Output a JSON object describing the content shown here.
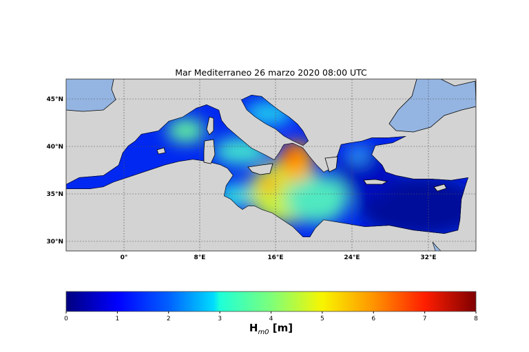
{
  "title": "Mar Mediterraneo 26 marzo 2020  08:00 UTC",
  "map": {
    "variable": "significant wave height",
    "lat_ticks": [
      "45°N",
      "40°N",
      "35°N",
      "30°N"
    ],
    "lon_ticks": [
      "0°",
      "8°E",
      "16°E",
      "24°E",
      "32°E"
    ],
    "colors": {
      "land": "#d3d3d3",
      "outside_sea": "#94b5e2",
      "coast": "#000000",
      "grid": "#555555"
    }
  },
  "colorbar": {
    "colormap": "jet",
    "min": 0,
    "max": 8,
    "ticks": [
      "0",
      "1",
      "2",
      "3",
      "4",
      "5",
      "6",
      "7",
      "8"
    ],
    "label_main": "H",
    "label_sub": "m0",
    "label_unit": " [m]"
  }
}
